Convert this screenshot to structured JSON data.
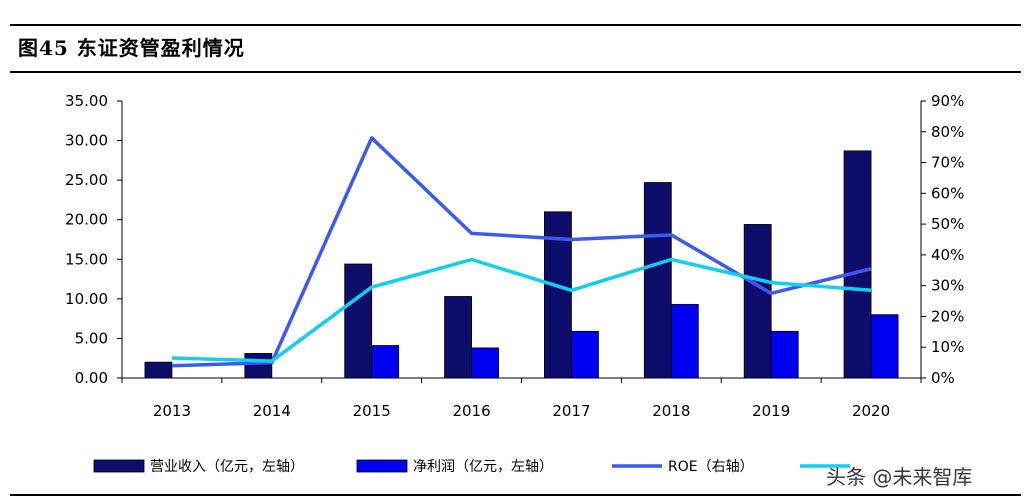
{
  "title": "图45 东证资管盈利情况",
  "watermark": "头条 @未来智库",
  "colors": {
    "revenue": "#0d0d6b",
    "net_profit": "#0000f0",
    "roe": "#3d5af0",
    "fourth": "#12cff0"
  },
  "chart_data": {
    "type": "bar",
    "categories": [
      "2013",
      "2014",
      "2015",
      "2016",
      "2017",
      "2018",
      "2019",
      "2020"
    ],
    "y_left": {
      "lim": [
        0,
        35
      ],
      "ticks": [
        "0.00",
        "5.00",
        "10.00",
        "15.00",
        "20.00",
        "25.00",
        "30.00",
        "35.00"
      ]
    },
    "y_right": {
      "lim": [
        0,
        90
      ],
      "ticks": [
        "0%",
        "10%",
        "20%",
        "30%",
        "40%",
        "50%",
        "60%",
        "70%",
        "80%",
        "90%"
      ]
    },
    "series": [
      {
        "name": "营业收入（亿元，左轴）",
        "kind": "bar",
        "axis": "left",
        "values": [
          2.0,
          3.1,
          14.4,
          10.3,
          21.0,
          24.7,
          19.4,
          28.7
        ]
      },
      {
        "name": "净利润（亿元，左轴）",
        "kind": "bar",
        "axis": "left",
        "values": [
          0,
          0,
          4.1,
          3.8,
          5.9,
          9.3,
          5.9,
          8.0
        ]
      },
      {
        "name": "ROE（右轴）",
        "kind": "line",
        "axis": "right",
        "values": [
          4,
          5,
          78,
          47,
          45,
          46.5,
          27.5,
          35.5
        ]
      },
      {
        "name": "",
        "kind": "line",
        "axis": "right",
        "values": [
          6.5,
          5.5,
          29.5,
          38.5,
          28.5,
          38.5,
          31,
          28.5
        ]
      }
    ],
    "grid": false,
    "legend": "bottom"
  }
}
